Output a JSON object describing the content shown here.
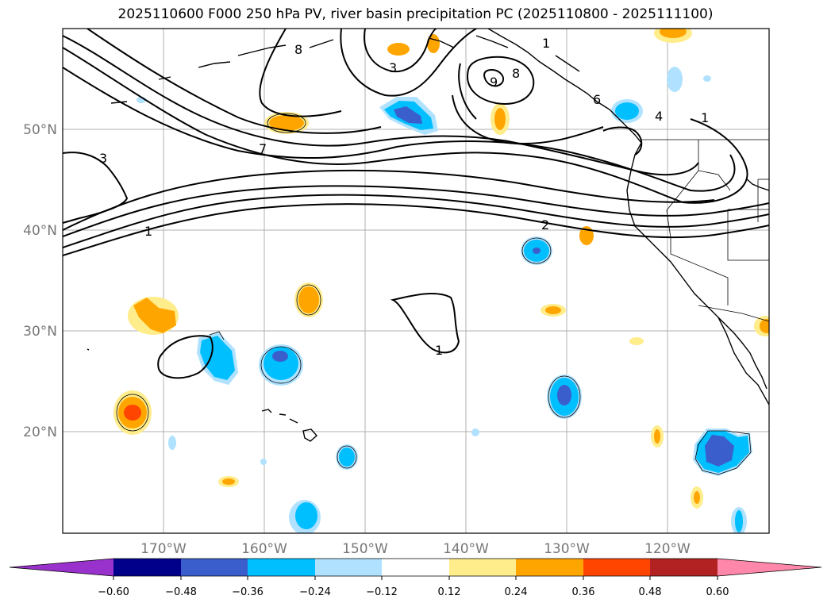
{
  "title": "2025110600 F000 250 hPa PV, river basin precipitation PC (2025110800 - 2025111100)",
  "lon_labels": [
    "170°W",
    "160°W",
    "150°W",
    "140°W",
    "130°W",
    "120°W"
  ],
  "lat_labels": [
    "50°N",
    "40°N",
    "30°N",
    "20°N"
  ],
  "colorbar": {
    "colors": [
      "#9932cc",
      "#00008b",
      "#3a5fcd",
      "#00bfff",
      "#b0e2ff",
      "#ffffff",
      "#ffec8b",
      "#ffa500",
      "#ff4500",
      "#b22222",
      "#ff88aa"
    ],
    "tick_labels": [
      "−0.60",
      "−0.48",
      "−0.36",
      "−0.24",
      "−0.12",
      "0.12",
      "0.24",
      "0.36",
      "0.48",
      "0.60"
    ]
  },
  "contour_labels": [
    "1",
    "1",
    "1",
    "1",
    "2",
    "3",
    "3",
    "4",
    "6",
    "7",
    "8",
    "8",
    "9"
  ]
}
